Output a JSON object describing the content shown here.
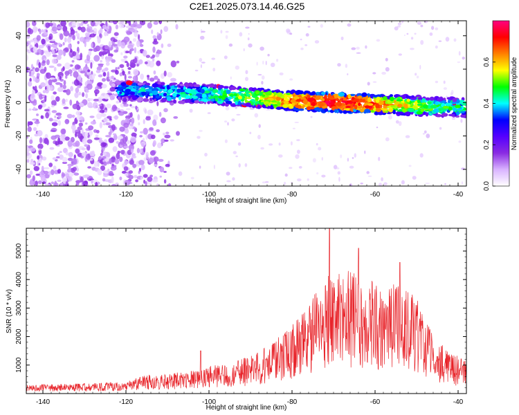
{
  "title": "C2E1.2025.073.14.46.G25",
  "chart_data": [
    {
      "type": "heatmap",
      "xlabel": "Height of straight line (km)",
      "ylabel": "Frequency (Hz)",
      "xlim": [
        -144,
        -38
      ],
      "ylim": [
        -50,
        49
      ],
      "xticks": [
        -140,
        -120,
        -100,
        -80,
        -60,
        -40
      ],
      "yticks": [
        -40,
        -20,
        0,
        20,
        40
      ],
      "colorbar": {
        "label": "Normalized spectral amplitude",
        "range": [
          0,
          0.8
        ],
        "ticks": [
          0.0,
          0.2,
          0.4,
          0.6
        ],
        "colormap": [
          "#ffffff",
          "#d9b3ff",
          "#8a2be2",
          "#5500ff",
          "#0000ff",
          "#00ffff",
          "#00ff00",
          "#ffff00",
          "#ff8000",
          "#ff0000",
          "#ff0080"
        ]
      },
      "noise_region": {
        "x": [
          -144,
          -105
        ],
        "level": 0.14
      },
      "signal_track": [
        {
          "x": -120,
          "y": 7
        },
        {
          "x": -100,
          "y": 5
        },
        {
          "x": -80,
          "y": 1
        },
        {
          "x": -60,
          "y": -1
        },
        {
          "x": -38,
          "y": -3
        }
      ],
      "signal_peak": {
        "x": -70,
        "y": 0,
        "amplitude": 0.8
      }
    },
    {
      "type": "line",
      "xlabel": "Height of straight line (km)",
      "ylabel": "SNR (10 * v/v)",
      "xlim": [
        -144,
        -38
      ],
      "ylim": [
        0,
        5800
      ],
      "xticks": [
        -140,
        -120,
        -100,
        -80,
        -60,
        -40
      ],
      "yticks": [
        1000,
        2000,
        3000,
        4000,
        5000
      ],
      "color": "#e8242a",
      "envelope": {
        "x": [
          -144,
          -120,
          -115,
          -105,
          -100,
          -95,
          -90,
          -85,
          -80,
          -75,
          -72,
          -70,
          -66,
          -63,
          -60,
          -57,
          -54,
          -50,
          -46,
          -42,
          -38
        ],
        "y": [
          250,
          350,
          550,
          650,
          800,
          900,
          1100,
          1500,
          2000,
          2800,
          3600,
          3500,
          3600,
          3600,
          3300,
          3000,
          3400,
          2800,
          1700,
          1200,
          1000
        ]
      },
      "peaks": [
        {
          "x": -71,
          "y": 5800
        },
        {
          "x": -64,
          "y": 5100
        },
        {
          "x": -54,
          "y": 4600
        },
        {
          "x": -102,
          "y": 1500
        }
      ]
    }
  ]
}
